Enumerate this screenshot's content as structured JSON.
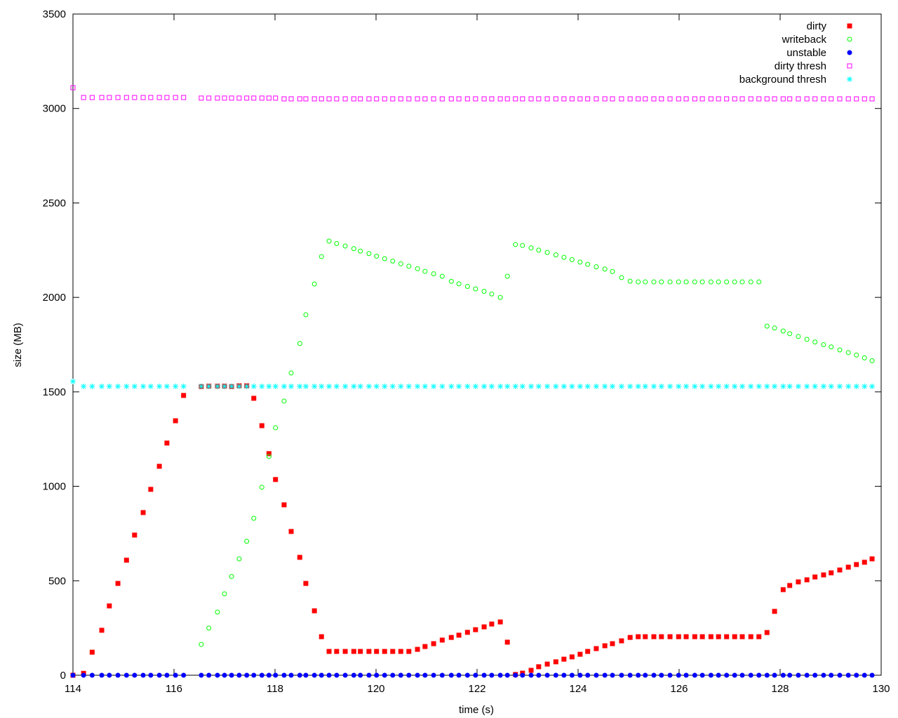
{
  "chart_data": {
    "type": "scatter",
    "xlabel": "time (s)",
    "ylabel": "size (MB)",
    "xlim": [
      114,
      130
    ],
    "ylim": [
      0,
      3500
    ],
    "xticks": [
      114,
      116,
      118,
      120,
      122,
      124,
      126,
      128,
      130
    ],
    "yticks": [
      0,
      500,
      1000,
      1500,
      2000,
      2500,
      3000,
      3500
    ],
    "legend": "top-right",
    "x": [
      114.0,
      114.21,
      114.38,
      114.57,
      114.72,
      114.89,
      115.06,
      115.22,
      115.39,
      115.54,
      115.71,
      115.86,
      116.03,
      116.19,
      116.54,
      116.69,
      116.86,
      117.0,
      117.14,
      117.29,
      117.44,
      117.58,
      117.74,
      117.88,
      118.01,
      118.18,
      118.32,
      118.49,
      118.61,
      118.78,
      118.92,
      119.07,
      119.22,
      119.39,
      119.56,
      119.69,
      119.86,
      120.01,
      120.17,
      120.33,
      120.49,
      120.65,
      120.82,
      120.97,
      121.14,
      121.31,
      121.49,
      121.64,
      121.81,
      121.97,
      122.14,
      122.29,
      122.46,
      122.6,
      122.76,
      122.9,
      123.07,
      123.22,
      123.39,
      123.56,
      123.72,
      123.88,
      124.04,
      124.19,
      124.36,
      124.53,
      124.68,
      124.86,
      125.03,
      125.19,
      125.33,
      125.5,
      125.65,
      125.82,
      125.99,
      126.14,
      126.31,
      126.46,
      126.63,
      126.78,
      126.94,
      127.1,
      127.25,
      127.42,
      127.58,
      127.74,
      127.89,
      128.06,
      128.19,
      128.36,
      128.53,
      128.69,
      128.86,
      129.01,
      129.18,
      129.35,
      129.51,
      129.67,
      129.82
    ],
    "series": [
      {
        "name": "dirty",
        "color": "#ff0000",
        "marker": "filled-square",
        "values": [
          0,
          10,
          122,
          238,
          367,
          486,
          609,
          742,
          861,
          984,
          1106,
          1229,
          1347,
          1481,
          1528,
          1530,
          1530,
          1530,
          1528,
          1532,
          1532,
          1466,
          1321,
          1173,
          1036,
          902,
          761,
          624,
          486,
          341,
          204,
          126,
          126,
          126,
          126,
          126,
          126,
          126,
          126,
          126,
          126,
          126,
          137,
          152,
          167,
          186,
          200,
          212,
          227,
          241,
          256,
          271,
          282,
          175,
          4,
          11,
          26,
          45,
          59,
          71,
          85,
          97,
          111,
          126,
          141,
          156,
          167,
          182,
          200,
          204,
          204,
          204,
          204,
          204,
          204,
          204,
          204,
          204,
          204,
          204,
          204,
          204,
          204,
          204,
          204,
          226,
          338,
          453,
          475,
          494,
          505,
          520,
          531,
          542,
          557,
          572,
          586,
          598,
          616
        ]
      },
      {
        "name": "writeback",
        "color": "#00ff00",
        "marker": "open-circle",
        "values": [
          null,
          null,
          null,
          null,
          null,
          null,
          null,
          null,
          null,
          null,
          null,
          null,
          null,
          null,
          163,
          249,
          334,
          431,
          523,
          616,
          709,
          831,
          995,
          1158,
          1310,
          1451,
          1600,
          1756,
          1908,
          2071,
          2216,
          2298,
          2285,
          2272,
          2258,
          2245,
          2232,
          2218,
          2205,
          2192,
          2178,
          2165,
          2152,
          2138,
          2125,
          2112,
          2085,
          2072,
          2058,
          2045,
          2032,
          2018,
          2000,
          2112,
          2280,
          2275,
          2262,
          2250,
          2238,
          2225,
          2212,
          2200,
          2187,
          2175,
          2162,
          2150,
          2137,
          2105,
          2086,
          2082,
          2082,
          2082,
          2082,
          2082,
          2082,
          2082,
          2082,
          2082,
          2082,
          2082,
          2082,
          2082,
          2082,
          2082,
          2082,
          1848,
          1838,
          1822,
          1808,
          1793,
          1778,
          1764,
          1750,
          1738,
          1722,
          1708,
          1695,
          1680,
          1665
        ]
      },
      {
        "name": "unstable",
        "color": "#0000ff",
        "marker": "filled-circle",
        "values": [
          0,
          0,
          0,
          0,
          0,
          0,
          0,
          0,
          0,
          0,
          0,
          0,
          0,
          0,
          0,
          0,
          0,
          0,
          0,
          0,
          0,
          0,
          0,
          0,
          0,
          0,
          0,
          0,
          0,
          0,
          0,
          0,
          0,
          0,
          0,
          0,
          0,
          0,
          0,
          0,
          0,
          0,
          0,
          0,
          0,
          0,
          0,
          0,
          0,
          0,
          0,
          0,
          0,
          0,
          0,
          0,
          0,
          0,
          0,
          0,
          0,
          0,
          0,
          0,
          0,
          0,
          0,
          0,
          0,
          0,
          0,
          0,
          0,
          0,
          0,
          0,
          0,
          0,
          0,
          0,
          0,
          0,
          0,
          0,
          0,
          0,
          0,
          0,
          0,
          0,
          0,
          0,
          0,
          0,
          0,
          0,
          0,
          0,
          0
        ]
      },
      {
        "name": "dirty thresh",
        "color": "#ff00ff",
        "marker": "open-square",
        "values": [
          3110,
          3058,
          3058,
          3058,
          3058,
          3058,
          3058,
          3058,
          3058,
          3058,
          3058,
          3058,
          3058,
          3058,
          3055,
          3055,
          3055,
          3055,
          3055,
          3055,
          3055,
          3055,
          3055,
          3055,
          3055,
          3051,
          3051,
          3051,
          3051,
          3051,
          3051,
          3051,
          3051,
          3051,
          3051,
          3051,
          3051,
          3051,
          3051,
          3051,
          3051,
          3051,
          3051,
          3051,
          3051,
          3051,
          3051,
          3051,
          3051,
          3051,
          3051,
          3051,
          3051,
          3051,
          3051,
          3051,
          3051,
          3051,
          3051,
          3051,
          3051,
          3051,
          3051,
          3051,
          3051,
          3051,
          3051,
          3051,
          3051,
          3051,
          3051,
          3051,
          3051,
          3051,
          3051,
          3051,
          3051,
          3051,
          3051,
          3051,
          3051,
          3051,
          3051,
          3051,
          3051,
          3051,
          3051,
          3051,
          3051,
          3051,
          3051,
          3051,
          3051,
          3051,
          3051,
          3051,
          3051,
          3051,
          3051
        ]
      },
      {
        "name": "background thresh",
        "color": "#00ffff",
        "marker": "asterisk",
        "values": [
          1555,
          1529,
          1529,
          1529,
          1529,
          1529,
          1529,
          1529,
          1529,
          1529,
          1529,
          1529,
          1529,
          1529,
          1529,
          1529,
          1529,
          1529,
          1529,
          1529,
          1529,
          1529,
          1529,
          1529,
          1529,
          1529,
          1529,
          1529,
          1529,
          1529,
          1529,
          1529,
          1529,
          1529,
          1529,
          1529,
          1529,
          1529,
          1529,
          1529,
          1529,
          1529,
          1529,
          1529,
          1529,
          1529,
          1529,
          1529,
          1529,
          1529,
          1529,
          1529,
          1529,
          1529,
          1529,
          1529,
          1529,
          1529,
          1529,
          1529,
          1529,
          1529,
          1529,
          1529,
          1529,
          1529,
          1529,
          1529,
          1529,
          1529,
          1529,
          1529,
          1529,
          1529,
          1529,
          1529,
          1529,
          1529,
          1529,
          1529,
          1529,
          1529,
          1529,
          1529,
          1529,
          1529,
          1529,
          1529,
          1529,
          1529,
          1529,
          1529,
          1529,
          1529,
          1529,
          1529,
          1529,
          1529,
          1529
        ]
      }
    ]
  }
}
